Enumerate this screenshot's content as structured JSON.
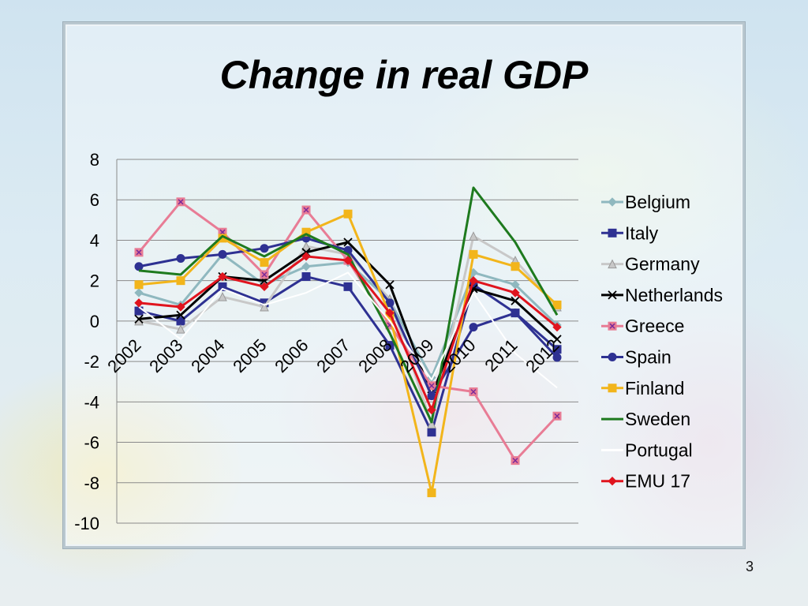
{
  "slide": {
    "title": "Change in real GDP",
    "page_number": "3"
  },
  "chart_data": {
    "type": "line",
    "title": "",
    "xlabel": "",
    "ylabel": "",
    "ylim": [
      -10,
      8
    ],
    "yticks": [
      8,
      6,
      4,
      2,
      0,
      -2,
      -4,
      -6,
      -8,
      -10
    ],
    "ytick_labels": [
      "8",
      "6",
      "4",
      "2",
      "0",
      "-2",
      "-4",
      "-6",
      "-8",
      "-10"
    ],
    "categories": [
      "2002",
      "2003",
      "2004",
      "2005",
      "2006",
      "2007",
      "2008",
      "2009",
      "2010",
      "2011",
      "2012"
    ],
    "grid": true,
    "legend_position": "right",
    "series": [
      {
        "name": "Belgium",
        "color": "#8fb8bf",
        "marker": "diamond",
        "values": [
          1.4,
          0.8,
          3.3,
          1.8,
          2.7,
          2.9,
          1.0,
          -2.8,
          2.4,
          1.8,
          -0.2
        ]
      },
      {
        "name": "Italy",
        "color": "#2e3192",
        "marker": "square",
        "values": [
          0.5,
          0.0,
          1.7,
          0.9,
          2.2,
          1.7,
          -1.2,
          -5.5,
          1.8,
          0.4,
          -1.4
        ]
      },
      {
        "name": "Germany",
        "color": "#c8c8c8",
        "marker": "triangle",
        "values": [
          0.0,
          -0.4,
          1.2,
          0.7,
          3.7,
          3.3,
          1.1,
          -5.1,
          4.2,
          3.0,
          0.7
        ]
      },
      {
        "name": "Netherlands",
        "color": "#000000",
        "marker": "x",
        "values": [
          0.1,
          0.3,
          2.2,
          2.0,
          3.4,
          3.9,
          1.8,
          -3.7,
          1.6,
          1.0,
          -0.9
        ]
      },
      {
        "name": "Greece",
        "color": "#e87c95",
        "marker": "square-x",
        "values": [
          3.4,
          5.9,
          4.4,
          2.3,
          5.5,
          3.0,
          -0.2,
          -3.2,
          -3.5,
          -6.9,
          -4.7
        ]
      },
      {
        "name": "Spain",
        "color": "#2e3192",
        "marker": "circle",
        "values": [
          2.7,
          3.1,
          3.3,
          3.6,
          4.1,
          3.5,
          0.9,
          -3.7,
          -0.3,
          0.4,
          -1.8
        ]
      },
      {
        "name": "Finland",
        "color": "#f2b51b",
        "marker": "square",
        "values": [
          1.8,
          2.0,
          4.1,
          2.9,
          4.4,
          5.3,
          0.3,
          -8.5,
          3.3,
          2.7,
          0.8
        ]
      },
      {
        "name": "Sweden",
        "color": "#1e7a1e",
        "marker": "none",
        "values": [
          2.5,
          2.3,
          4.2,
          3.2,
          4.3,
          3.3,
          -0.6,
          -5.0,
          6.6,
          3.9,
          0.3
        ]
      },
      {
        "name": "Portugal",
        "color": "#ffffff",
        "marker": "none",
        "values": [
          0.7,
          -0.9,
          1.6,
          0.8,
          1.4,
          2.4,
          0.0,
          -2.9,
          1.4,
          -1.6,
          -3.3
        ]
      },
      {
        "name": "EMU 17",
        "color": "#e0141e",
        "marker": "diamond",
        "values": [
          0.9,
          0.7,
          2.2,
          1.7,
          3.2,
          3.0,
          0.4,
          -4.4,
          2.0,
          1.4,
          -0.3
        ]
      }
    ]
  }
}
